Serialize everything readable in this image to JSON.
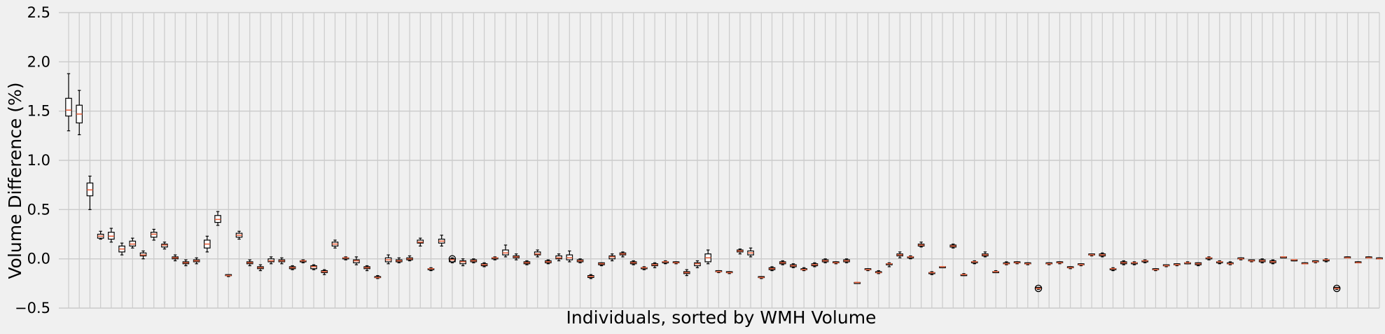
{
  "chart_data": {
    "type": "boxplot",
    "title": "",
    "xlabel": "Individuals, sorted by WMH Volume",
    "ylabel": "Volume Difference (%)",
    "ylim": [
      -0.5,
      2.5
    ],
    "yticks": [
      -0.5,
      0.0,
      0.5,
      1.0,
      1.5,
      2.0,
      2.5
    ],
    "ytick_labels": [
      "−0.5",
      "0.0",
      "0.5",
      "1.0",
      "1.5",
      "2.0",
      "2.5"
    ],
    "grid": true,
    "colors": {
      "background": "#f0f0f0",
      "grid": "#cbcbcb",
      "box": "#000000",
      "median": "#e5603c"
    },
    "boxes": [
      {
        "min": 1.3,
        "q1": 1.45,
        "median": 1.51,
        "q3": 1.63,
        "max": 1.88
      },
      {
        "min": 1.26,
        "q1": 1.38,
        "median": 1.47,
        "q3": 1.56,
        "max": 1.71
      },
      {
        "min": 0.5,
        "q1": 0.64,
        "median": 0.7,
        "q3": 0.77,
        "max": 0.84
      },
      {
        "min": 0.2,
        "q1": 0.21,
        "median": 0.23,
        "q3": 0.25,
        "max": 0.28
      },
      {
        "min": 0.17,
        "q1": 0.2,
        "median": 0.23,
        "q3": 0.27,
        "max": 0.31
      },
      {
        "min": 0.04,
        "q1": 0.07,
        "median": 0.1,
        "q3": 0.13,
        "max": 0.16
      },
      {
        "min": 0.11,
        "q1": 0.13,
        "median": 0.15,
        "q3": 0.18,
        "max": 0.21
      },
      {
        "min": 0.0,
        "q1": 0.03,
        "median": 0.04,
        "q3": 0.06,
        "max": 0.08
      },
      {
        "min": 0.19,
        "q1": 0.22,
        "median": 0.25,
        "q3": 0.27,
        "max": 0.3
      },
      {
        "min": 0.1,
        "q1": 0.12,
        "median": 0.14,
        "q3": 0.15,
        "max": 0.17
      },
      {
        "min": -0.02,
        "q1": 0.0,
        "median": 0.01,
        "q3": 0.02,
        "max": 0.04
      },
      {
        "min": -0.07,
        "q1": -0.05,
        "median": -0.04,
        "q3": -0.03,
        "max": -0.01
      },
      {
        "min": -0.05,
        "q1": -0.03,
        "median": -0.02,
        "q3": -0.01,
        "max": 0.01
      },
      {
        "min": 0.07,
        "q1": 0.11,
        "median": 0.15,
        "q3": 0.19,
        "max": 0.23
      },
      {
        "min": 0.34,
        "q1": 0.37,
        "median": 0.4,
        "q3": 0.44,
        "max": 0.48
      },
      {
        "min": -0.18,
        "q1": -0.17,
        "median": -0.17,
        "q3": -0.16,
        "max": -0.16
      },
      {
        "min": 0.2,
        "q1": 0.22,
        "median": 0.24,
        "q3": 0.26,
        "max": 0.28
      },
      {
        "min": -0.07,
        "q1": -0.05,
        "median": -0.04,
        "q3": -0.03,
        "max": -0.01
      },
      {
        "min": -0.12,
        "q1": -0.1,
        "median": -0.09,
        "q3": -0.08,
        "max": -0.06
      },
      {
        "min": -0.05,
        "q1": -0.03,
        "median": -0.02,
        "q3": 0.0,
        "max": 0.02
      },
      {
        "min": -0.05,
        "q1": -0.03,
        "median": -0.02,
        "q3": -0.01,
        "max": 0.01
      },
      {
        "min": -0.11,
        "q1": -0.1,
        "median": -0.09,
        "q3": -0.08,
        "max": -0.07
      },
      {
        "min": -0.04,
        "q1": -0.03,
        "median": -0.02,
        "q3": -0.02,
        "max": -0.01
      },
      {
        "min": -0.11,
        "q1": -0.1,
        "median": -0.08,
        "q3": -0.07,
        "max": -0.06
      },
      {
        "min": -0.16,
        "q1": -0.14,
        "median": -0.13,
        "q3": -0.12,
        "max": -0.11
      },
      {
        "min": 0.11,
        "q1": 0.13,
        "median": 0.15,
        "q3": 0.17,
        "max": 0.19
      },
      {
        "min": -0.01,
        "q1": 0.0,
        "median": 0.01,
        "q3": 0.01,
        "max": 0.02
      },
      {
        "min": -0.06,
        "q1": -0.04,
        "median": -0.02,
        "q3": -0.01,
        "max": 0.02
      },
      {
        "min": -0.12,
        "q1": -0.1,
        "median": -0.09,
        "q3": -0.08,
        "max": -0.07
      },
      {
        "min": -0.2,
        "q1": -0.19,
        "median": -0.19,
        "q3": -0.18,
        "max": -0.17
      },
      {
        "min": -0.05,
        "q1": -0.03,
        "median": -0.01,
        "q3": 0.01,
        "max": 0.04
      },
      {
        "min": -0.04,
        "q1": -0.03,
        "median": -0.02,
        "q3": -0.01,
        "max": 0.01
      },
      {
        "min": -0.02,
        "q1": -0.01,
        "median": 0.0,
        "q3": 0.01,
        "max": 0.03
      },
      {
        "min": 0.13,
        "q1": 0.16,
        "median": 0.17,
        "q3": 0.19,
        "max": 0.21
      },
      {
        "min": -0.12,
        "q1": -0.11,
        "median": -0.1,
        "q3": -0.1,
        "max": -0.09
      },
      {
        "min": 0.13,
        "q1": 0.16,
        "median": 0.18,
        "q3": 0.2,
        "max": 0.24
      },
      {
        "min": -0.04,
        "q1": -0.03,
        "median": -0.01,
        "q3": 0.0,
        "max": 0.01,
        "fliers": [
          0.0
        ]
      },
      {
        "min": -0.07,
        "q1": -0.05,
        "median": -0.03,
        "q3": -0.02,
        "max": 0.0
      },
      {
        "min": -0.04,
        "q1": -0.03,
        "median": -0.02,
        "q3": -0.01,
        "max": 0.0
      },
      {
        "min": -0.08,
        "q1": -0.07,
        "median": -0.06,
        "q3": -0.05,
        "max": -0.04
      },
      {
        "min": -0.01,
        "q1": 0.0,
        "median": 0.01,
        "q3": 0.01,
        "max": 0.02
      },
      {
        "min": 0.02,
        "q1": 0.04,
        "median": 0.06,
        "q3": 0.09,
        "max": 0.14
      },
      {
        "min": -0.01,
        "q1": 0.01,
        "median": 0.02,
        "q3": 0.03,
        "max": 0.05
      },
      {
        "min": -0.06,
        "q1": -0.05,
        "median": -0.04,
        "q3": -0.03,
        "max": -0.02
      },
      {
        "min": 0.02,
        "q1": 0.04,
        "median": 0.05,
        "q3": 0.07,
        "max": 0.09
      },
      {
        "min": -0.05,
        "q1": -0.04,
        "median": -0.03,
        "q3": -0.02,
        "max": -0.01
      },
      {
        "min": -0.02,
        "q1": 0.0,
        "median": 0.01,
        "q3": 0.03,
        "max": 0.05
      },
      {
        "min": -0.03,
        "q1": -0.01,
        "median": 0.01,
        "q3": 0.04,
        "max": 0.08
      },
      {
        "min": -0.04,
        "q1": -0.03,
        "median": -0.02,
        "q3": -0.01,
        "max": 0.0
      },
      {
        "min": -0.2,
        "q1": -0.19,
        "median": -0.18,
        "q3": -0.17,
        "max": -0.16
      },
      {
        "min": -0.07,
        "q1": -0.06,
        "median": -0.05,
        "q3": -0.04,
        "max": -0.04
      },
      {
        "min": -0.02,
        "q1": 0.0,
        "median": 0.02,
        "q3": 0.03,
        "max": 0.05
      },
      {
        "min": 0.02,
        "q1": 0.04,
        "median": 0.05,
        "q3": 0.06,
        "max": 0.07
      },
      {
        "min": -0.06,
        "q1": -0.05,
        "median": -0.04,
        "q3": -0.03,
        "max": -0.02
      },
      {
        "min": -0.11,
        "q1": -0.1,
        "median": -0.09,
        "q3": -0.09,
        "max": -0.08
      },
      {
        "min": -0.09,
        "q1": -0.07,
        "median": -0.06,
        "q3": -0.05,
        "max": -0.04
      },
      {
        "min": -0.05,
        "q1": -0.04,
        "median": -0.03,
        "q3": -0.03,
        "max": -0.02
      },
      {
        "min": -0.05,
        "q1": -0.04,
        "median": -0.04,
        "q3": -0.03,
        "max": -0.03
      },
      {
        "min": -0.17,
        "q1": -0.15,
        "median": -0.14,
        "q3": -0.13,
        "max": -0.11
      },
      {
        "min": -0.09,
        "q1": -0.07,
        "median": -0.05,
        "q3": -0.04,
        "max": -0.02
      },
      {
        "min": -0.05,
        "q1": -0.03,
        "median": 0.01,
        "q3": 0.05,
        "max": 0.09
      },
      {
        "min": -0.14,
        "q1": -0.13,
        "median": -0.13,
        "q3": -0.12,
        "max": -0.12
      },
      {
        "min": -0.15,
        "q1": -0.14,
        "median": -0.14,
        "q3": -0.13,
        "max": -0.13
      },
      {
        "min": 0.05,
        "q1": 0.07,
        "median": 0.08,
        "q3": 0.09,
        "max": 0.1
      },
      {
        "min": 0.02,
        "q1": 0.04,
        "median": 0.06,
        "q3": 0.08,
        "max": 0.11
      },
      {
        "min": -0.2,
        "q1": -0.19,
        "median": -0.19,
        "q3": -0.18,
        "max": -0.18
      },
      {
        "min": -0.12,
        "q1": -0.11,
        "median": -0.1,
        "q3": -0.09,
        "max": -0.08
      },
      {
        "min": -0.06,
        "q1": -0.05,
        "median": -0.04,
        "q3": -0.03,
        "max": -0.02
      },
      {
        "min": -0.09,
        "q1": -0.08,
        "median": -0.07,
        "q3": -0.06,
        "max": -0.05
      },
      {
        "min": -0.12,
        "q1": -0.11,
        "median": -0.11,
        "q3": -0.1,
        "max": -0.09
      },
      {
        "min": -0.08,
        "q1": -0.07,
        "median": -0.06,
        "q3": -0.05,
        "max": -0.04
      },
      {
        "min": -0.04,
        "q1": -0.03,
        "median": -0.02,
        "q3": -0.01,
        "max": 0.0
      },
      {
        "min": -0.05,
        "q1": -0.04,
        "median": -0.04,
        "q3": -0.03,
        "max": -0.03
      },
      {
        "min": -0.04,
        "q1": -0.03,
        "median": -0.02,
        "q3": -0.01,
        "max": 0.0
      },
      {
        "min": -0.25,
        "q1": -0.25,
        "median": -0.24,
        "q3": -0.24,
        "max": -0.24
      },
      {
        "min": -0.12,
        "q1": -0.11,
        "median": -0.11,
        "q3": -0.1,
        "max": -0.1
      },
      {
        "min": -0.15,
        "q1": -0.14,
        "median": -0.14,
        "q3": -0.13,
        "max": -0.12
      },
      {
        "min": -0.08,
        "q1": -0.06,
        "median": -0.05,
        "q3": -0.05,
        "max": -0.04
      },
      {
        "min": 0.01,
        "q1": 0.03,
        "median": 0.04,
        "q3": 0.05,
        "max": 0.07
      },
      {
        "min": 0.0,
        "q1": 0.01,
        "median": 0.02,
        "q3": 0.02,
        "max": 0.03
      },
      {
        "min": 0.12,
        "q1": 0.13,
        "median": 0.14,
        "q3": 0.15,
        "max": 0.17
      },
      {
        "min": -0.16,
        "q1": -0.15,
        "median": -0.14,
        "q3": -0.14,
        "max": -0.13
      },
      {
        "min": -0.09,
        "q1": -0.09,
        "median": -0.08,
        "q3": -0.08,
        "max": -0.08
      },
      {
        "min": 0.11,
        "q1": 0.12,
        "median": 0.13,
        "q3": 0.14,
        "max": 0.15
      },
      {
        "min": -0.17,
        "q1": -0.17,
        "median": -0.16,
        "q3": -0.16,
        "max": -0.15
      },
      {
        "min": -0.05,
        "q1": -0.04,
        "median": -0.03,
        "q3": -0.03,
        "max": -0.02
      },
      {
        "min": 0.02,
        "q1": 0.03,
        "median": 0.04,
        "q3": 0.05,
        "max": 0.07
      },
      {
        "min": -0.14,
        "q1": -0.14,
        "median": -0.13,
        "q3": -0.13,
        "max": -0.12
      },
      {
        "min": -0.06,
        "q1": -0.05,
        "median": -0.05,
        "q3": -0.04,
        "max": -0.03
      },
      {
        "min": -0.05,
        "q1": -0.04,
        "median": -0.04,
        "q3": -0.03,
        "max": -0.03
      },
      {
        "min": -0.06,
        "q1": -0.05,
        "median": -0.05,
        "q3": -0.04,
        "max": -0.04
      },
      {
        "min": -0.31,
        "q1": -0.3,
        "median": -0.3,
        "q3": -0.29,
        "max": -0.29,
        "fliers": [
          -0.3
        ]
      },
      {
        "min": -0.06,
        "q1": -0.05,
        "median": -0.05,
        "q3": -0.04,
        "max": -0.04
      },
      {
        "min": -0.05,
        "q1": -0.04,
        "median": -0.04,
        "q3": -0.03,
        "max": -0.03
      },
      {
        "min": -0.1,
        "q1": -0.09,
        "median": -0.09,
        "q3": -0.08,
        "max": -0.08
      },
      {
        "min": -0.07,
        "q1": -0.06,
        "median": -0.06,
        "q3": -0.05,
        "max": -0.05
      },
      {
        "min": 0.03,
        "q1": 0.04,
        "median": 0.04,
        "q3": 0.05,
        "max": 0.05
      },
      {
        "min": 0.02,
        "q1": 0.03,
        "median": 0.04,
        "q3": 0.05,
        "max": 0.06
      },
      {
        "min": -0.12,
        "q1": -0.11,
        "median": -0.1,
        "q3": -0.1,
        "max": -0.09
      },
      {
        "min": -0.06,
        "q1": -0.05,
        "median": -0.04,
        "q3": -0.03,
        "max": -0.02
      },
      {
        "min": -0.06,
        "q1": -0.05,
        "median": -0.04,
        "q3": -0.04,
        "max": -0.03
      },
      {
        "min": -0.04,
        "q1": -0.03,
        "median": -0.02,
        "q3": -0.02,
        "max": -0.01
      },
      {
        "min": -0.12,
        "q1": -0.11,
        "median": -0.11,
        "q3": -0.1,
        "max": -0.1
      },
      {
        "min": -0.08,
        "q1": -0.07,
        "median": -0.07,
        "q3": -0.06,
        "max": -0.06
      },
      {
        "min": -0.07,
        "q1": -0.06,
        "median": -0.06,
        "q3": -0.05,
        "max": -0.05
      },
      {
        "min": -0.05,
        "q1": -0.05,
        "median": -0.04,
        "q3": -0.04,
        "max": -0.03
      },
      {
        "min": -0.07,
        "q1": -0.06,
        "median": -0.05,
        "q3": -0.04,
        "max": -0.04
      },
      {
        "min": -0.01,
        "q1": 0.0,
        "median": 0.01,
        "q3": 0.01,
        "max": 0.02
      },
      {
        "min": -0.05,
        "q1": -0.04,
        "median": -0.03,
        "q3": -0.03,
        "max": -0.02
      },
      {
        "min": -0.06,
        "q1": -0.05,
        "median": -0.05,
        "q3": -0.04,
        "max": -0.03
      },
      {
        "min": -0.01,
        "q1": 0.0,
        "median": 0.0,
        "q3": 0.01,
        "max": 0.01
      },
      {
        "min": -0.03,
        "q1": -0.02,
        "median": -0.02,
        "q3": -0.01,
        "max": -0.01
      },
      {
        "min": -0.04,
        "q1": -0.03,
        "median": -0.02,
        "q3": -0.01,
        "max": 0.0
      },
      {
        "min": -0.05,
        "q1": -0.04,
        "median": -0.03,
        "q3": -0.02,
        "max": -0.01
      },
      {
        "min": 0.01,
        "q1": 0.01,
        "median": 0.02,
        "q3": 0.02,
        "max": 0.02
      },
      {
        "min": -0.02,
        "q1": -0.01,
        "median": -0.01,
        "q3": -0.01,
        "max": -0.01
      },
      {
        "min": -0.05,
        "q1": -0.05,
        "median": -0.05,
        "q3": -0.04,
        "max": -0.04
      },
      {
        "min": -0.04,
        "q1": -0.03,
        "median": -0.03,
        "q3": -0.02,
        "max": -0.02
      },
      {
        "min": -0.03,
        "q1": -0.02,
        "median": -0.01,
        "q3": -0.01,
        "max": 0.0
      },
      {
        "min": -0.31,
        "q1": -0.3,
        "median": -0.3,
        "q3": -0.29,
        "max": -0.29,
        "fliers": [
          -0.3
        ]
      },
      {
        "min": 0.01,
        "q1": 0.01,
        "median": 0.01,
        "q3": 0.02,
        "max": 0.02
      },
      {
        "min": -0.04,
        "q1": -0.04,
        "median": -0.04,
        "q3": -0.03,
        "max": -0.03
      },
      {
        "min": 0.01,
        "q1": 0.01,
        "median": 0.01,
        "q3": 0.02,
        "max": 0.02
      },
      {
        "min": 0.0,
        "q1": 0.0,
        "median": 0.0,
        "q3": 0.01,
        "max": 0.01
      },
      {
        "min": -0.03,
        "q1": -0.03,
        "median": -0.02,
        "q3": -0.02,
        "max": -0.02
      }
    ]
  }
}
